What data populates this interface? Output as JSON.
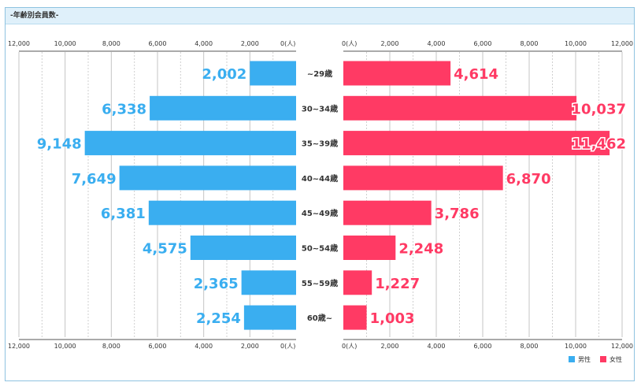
{
  "panel": {
    "title": "-年齢別会員数-"
  },
  "chart_data": {
    "type": "bar",
    "orientation": "horizontal-butterfly",
    "categories": [
      "~29歳",
      "30~34歳",
      "35~39歳",
      "40~44歳",
      "45~49歳",
      "50~54歳",
      "55~59歳",
      "60歳~"
    ],
    "series": [
      {
        "name": "男性",
        "values": [
          2002,
          6338,
          9148,
          7649,
          6381,
          4575,
          2365,
          2254
        ],
        "labels": [
          "2,002",
          "6,338",
          "9,148",
          "7,649",
          "6,381",
          "4,575",
          "2,365",
          "2,254"
        ],
        "color": "#3aaef0"
      },
      {
        "name": "女性",
        "values": [
          4614,
          10037,
          11462,
          6870,
          3786,
          2248,
          1227,
          1003
        ],
        "labels": [
          "4,614",
          "10,037",
          "11,462",
          "6,870",
          "3,786",
          "2,248",
          "1,227",
          "1,003"
        ],
        "color": "#ff3a64"
      }
    ],
    "xlim": [
      0,
      12000
    ],
    "ticks": [
      0,
      2000,
      4000,
      6000,
      8000,
      10000,
      12000
    ],
    "tick_labels_left": [
      "0(人)",
      "2,000",
      "4,000",
      "6,000",
      "8,000",
      "10,000",
      "12,000"
    ],
    "tick_labels_right": [
      "0(人)",
      "2,000",
      "4,000",
      "6,000",
      "8,000",
      "10,000",
      "12,000"
    ],
    "grid": true,
    "legend_position": "bottom-right"
  }
}
